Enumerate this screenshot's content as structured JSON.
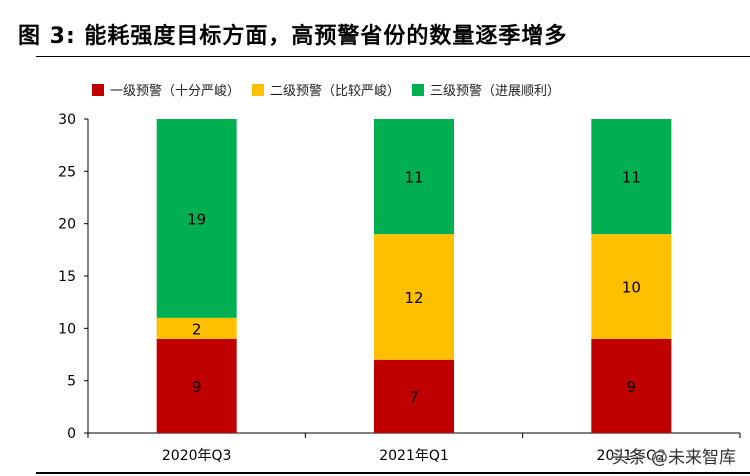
{
  "title": "图 3:  能耗强度目标方面，高预警省份的数量逐季增多",
  "watermark": "头条 @未来智库",
  "chart_data": {
    "type": "bar",
    "stacked": true,
    "categories": [
      "2020年Q3",
      "2021年Q1",
      "2021年Q2"
    ],
    "series": [
      {
        "name": "一级预警（十分严峻）",
        "color": "#C00000",
        "values": [
          9,
          7,
          9
        ]
      },
      {
        "name": "二级预警（比较严峻）",
        "color": "#FFC000",
        "values": [
          2,
          12,
          10
        ]
      },
      {
        "name": "三级预警（进展顺利）",
        "color": "#00B050",
        "values": [
          19,
          11,
          11
        ]
      }
    ],
    "ylim": [
      0,
      30
    ],
    "yticks": [
      0,
      5,
      10,
      15,
      20,
      25,
      30
    ],
    "legend_position": "top",
    "grid": false
  }
}
